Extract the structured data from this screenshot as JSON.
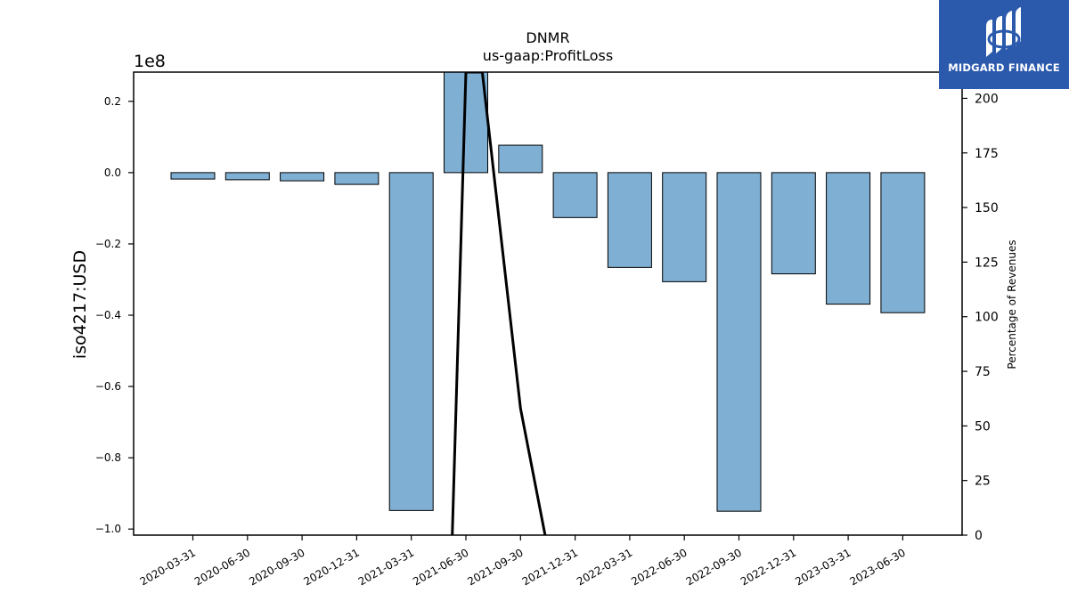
{
  "chart_data": {
    "type": "bar",
    "title": "DNMR",
    "subtitle": "us-gaap:ProfitLoss",
    "ylabel": "iso4217:USD",
    "ylabel_right": "Percentage of Revenues",
    "y_offset_label": "1e8",
    "categories": [
      "2020-03-31",
      "2020-06-30",
      "2020-09-30",
      "2020-12-31",
      "2021-03-31",
      "2021-06-30",
      "2021-09-30",
      "2021-12-31",
      "2022-03-31",
      "2022-06-30",
      "2022-09-30",
      "2022-12-31",
      "2023-03-31",
      "2023-06-30"
    ],
    "values": [
      -1800000,
      -2000000,
      -2300000,
      -3300000,
      -94800000,
      28500000,
      7700000,
      -12600000,
      -26600000,
      -30600000,
      -95000000,
      -28400000,
      -36900000,
      -39300000
    ],
    "ylim": [
      -1.017,
      0.282
    ],
    "yticks": [
      -1.0,
      -0.8,
      -0.6,
      -0.4,
      -0.2,
      0.0,
      0.2
    ],
    "ytick_labels": [
      "−1.0",
      "−0.8",
      "−0.6",
      "−0.4",
      "−0.2",
      "0.0",
      "0.2"
    ],
    "y2lim": [
      0,
      212
    ],
    "y2ticks": [
      0,
      25,
      50,
      75,
      100,
      125,
      150,
      175,
      200
    ],
    "line": {
      "name": "Percentage of Revenues",
      "x_index": [
        4.75,
        5.0,
        5.3,
        6.0,
        6.45
      ],
      "values": [
        0,
        212,
        212,
        58,
        0
      ]
    },
    "grid": false,
    "colors": {
      "bar": "#7fafd3",
      "bar_edge": "#000000",
      "line": "#000000",
      "logo_bg": "#2b5aad"
    }
  },
  "logo": {
    "text": "MIDGARD FINANCE",
    "icon": "midgard-logo-icon"
  }
}
